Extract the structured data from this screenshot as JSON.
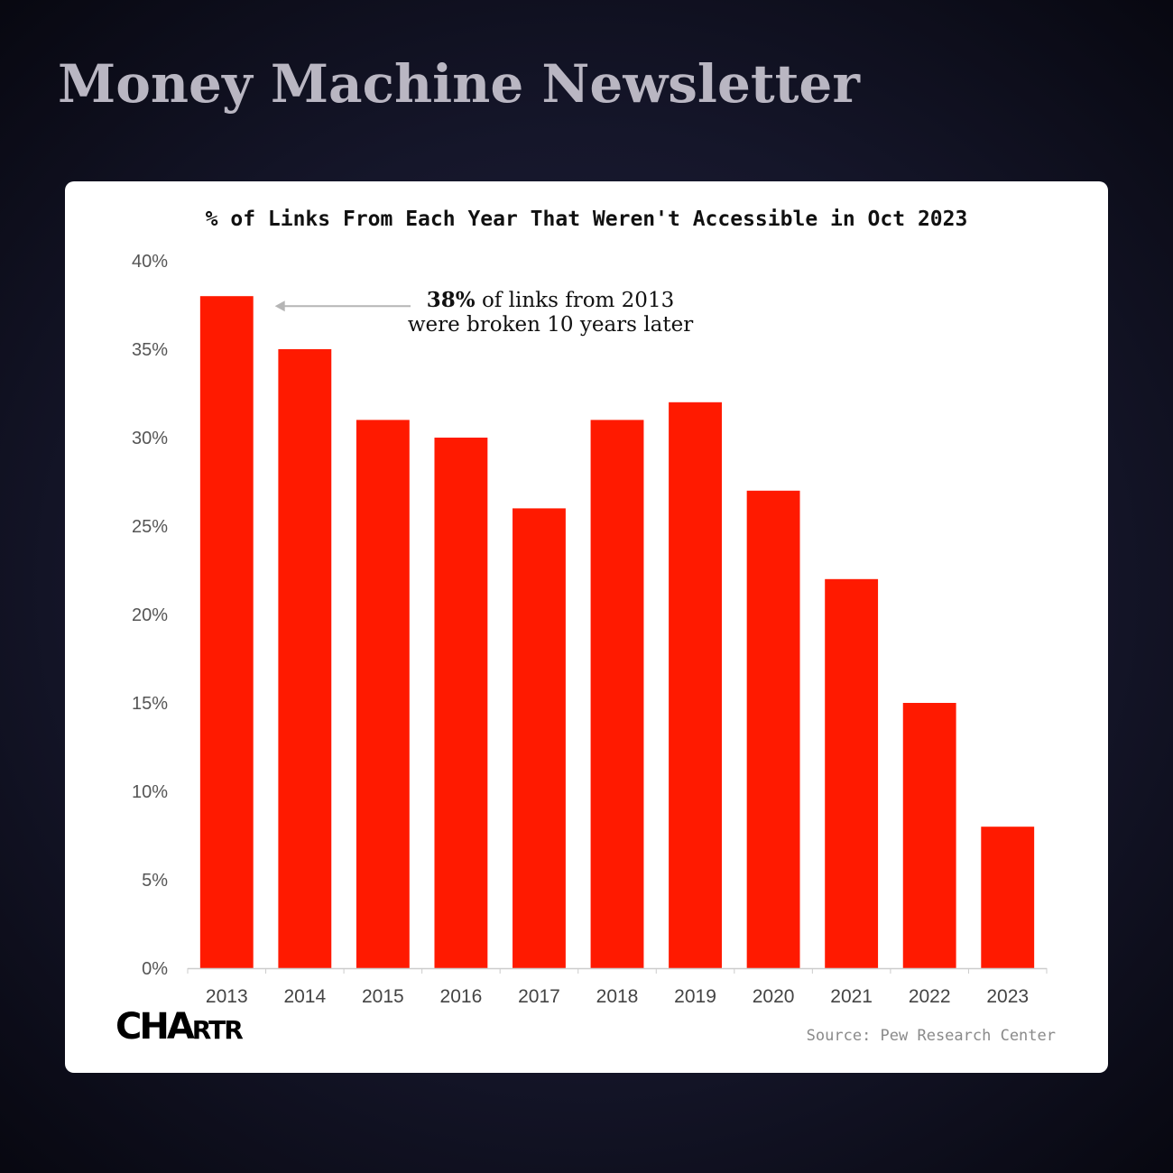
{
  "header": {
    "title": "Money Machine Newsletter"
  },
  "chart_data": {
    "type": "bar",
    "title": "% of Links From Each Year That Weren't Accessible in Oct 2023",
    "categories": [
      "2013",
      "2014",
      "2015",
      "2016",
      "2017",
      "2018",
      "2019",
      "2020",
      "2021",
      "2022",
      "2023"
    ],
    "values": [
      38,
      35,
      31,
      30,
      26,
      31,
      32,
      27,
      22,
      15,
      8
    ],
    "unit": "%",
    "ylim": [
      0,
      40
    ],
    "yticks": [
      "0%",
      "5%",
      "10%",
      "15%",
      "20%",
      "25%",
      "30%",
      "35%",
      "40%"
    ],
    "xlabel": "",
    "ylabel": "",
    "grid": false,
    "bar_color": "#ff1a00",
    "annotation": {
      "bold": "38%",
      "line1_rest": " of links from 2013",
      "line2": "were broken 10 years later",
      "target_category": "2013"
    }
  },
  "footer": {
    "logo": "CHARTR",
    "source": "Source: Pew Research Center"
  }
}
